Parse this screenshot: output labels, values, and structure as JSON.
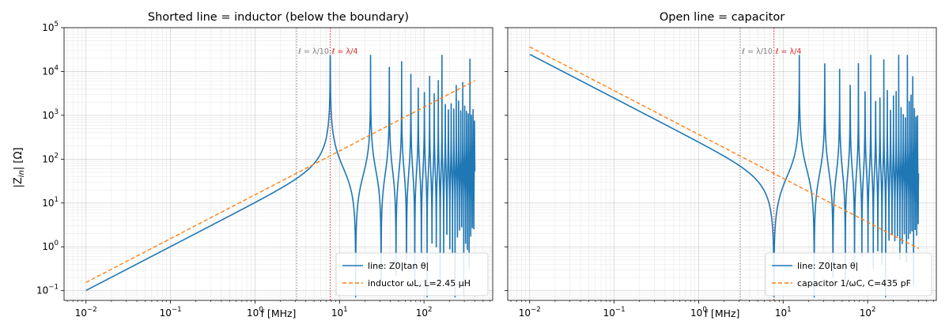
{
  "chart_data": [
    {
      "type": "line",
      "title": "Shorted line = inductor (below the boundary)",
      "xlabel": "f [MHz]",
      "ylabel": "|Z_in| [Ω]",
      "xscale": "log",
      "yscale": "log",
      "xlim": [
        0.0055,
        650
      ],
      "ylim": [
        0.06,
        100000
      ],
      "xticks": [
        0.01,
        0.1,
        1,
        10,
        100
      ],
      "xtick_labels": [
        "10^-2",
        "10^-1",
        "10^0",
        "10^1",
        "10^2"
      ],
      "yticks": [
        0.1,
        1,
        10,
        100,
        1000,
        10000,
        100000
      ],
      "ytick_labels": [
        "10^-1",
        "10^0",
        "10^1",
        "10^2",
        "10^3",
        "10^4",
        "10^5"
      ],
      "grid": true,
      "legend_position": "lower-right",
      "model": {
        "kind": "short",
        "Z0": 50,
        "quarter_wave_f_MHz": 7.77,
        "f_range_MHz": [
          0.01,
          400
        ]
      },
      "series": [
        {
          "name": "line: Z0|tan θ|",
          "color": "#1f77b4",
          "style": "solid",
          "points": [
            [
              0.01,
              0.16
            ],
            [
              0.1,
              1.6
            ],
            [
              1,
              15.8
            ],
            [
              3.1,
              53
            ],
            [
              7.77,
              25000
            ],
            [
              15.5,
              0.3
            ],
            [
              23.3,
              20000
            ],
            [
              400,
              1.5
            ]
          ]
        },
        {
          "name": "inductor ωL, L=2.45 μH",
          "color": "#ff7f0e",
          "style": "dashed",
          "points": [
            [
              0.01,
              0.154
            ],
            [
              400,
              6160
            ]
          ]
        }
      ],
      "vlines": [
        {
          "x": 3.108,
          "label": "ℓ = λ/10",
          "color": "#808080"
        },
        {
          "x": 7.77,
          "label": "ℓ = λ/4",
          "color": "#d62728"
        }
      ]
    },
    {
      "type": "line",
      "title": "Open line = capacitor",
      "xlabel": "f [MHz]",
      "ylabel": "",
      "xscale": "log",
      "yscale": "log",
      "xlim": [
        0.0055,
        650
      ],
      "ylim": [
        0.06,
        100000
      ],
      "xticks": [
        0.01,
        0.1,
        1,
        10,
        100
      ],
      "xtick_labels": [
        "10^-2",
        "10^-1",
        "10^0",
        "10^1",
        "10^2"
      ],
      "yticks": [
        0.1,
        1,
        10,
        100,
        1000,
        10000,
        100000
      ],
      "ytick_labels": [],
      "grid": true,
      "legend_position": "lower-right",
      "model": {
        "kind": "open",
        "Z0": 50,
        "quarter_wave_f_MHz": 7.77,
        "f_range_MHz": [
          0.01,
          400
        ]
      },
      "series": [
        {
          "name": "line: Z0|tan θ|",
          "color": "#1f77b4",
          "style": "solid",
          "points": [
            [
              0.01,
              36600
            ],
            [
              0.1,
              3660
            ],
            [
              1,
              366
            ],
            [
              3.1,
              107
            ],
            [
              7.77,
              0.1
            ],
            [
              15.5,
              20000
            ],
            [
              400,
              1.6
            ]
          ]
        },
        {
          "name": "capacitor 1/ωC, C=435 pF",
          "color": "#ff7f0e",
          "style": "dashed",
          "points": [
            [
              0.01,
              36600
            ],
            [
              400,
              0.915
            ]
          ]
        }
      ],
      "vlines": [
        {
          "x": 3.108,
          "label": "ℓ = λ/10",
          "color": "#808080"
        },
        {
          "x": 7.77,
          "label": "ℓ = λ/4",
          "color": "#d62728"
        }
      ]
    }
  ]
}
